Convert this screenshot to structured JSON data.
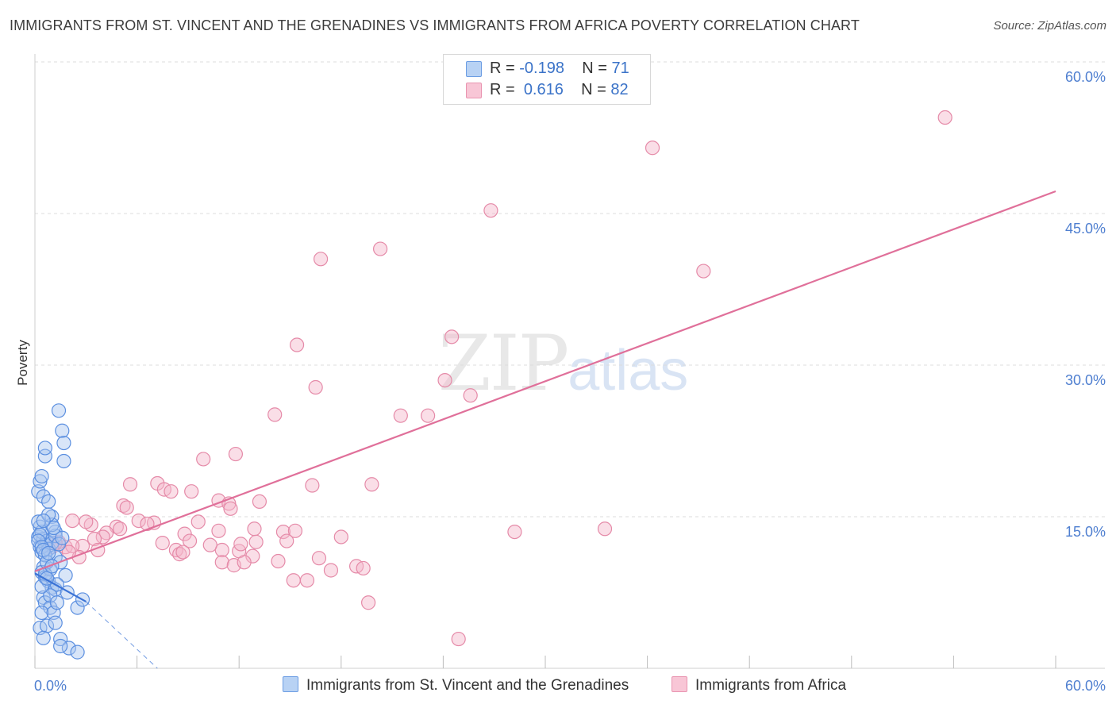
{
  "title": "IMMIGRANTS FROM ST. VINCENT AND THE GRENADINES VS IMMIGRANTS FROM AFRICA POVERTY CORRELATION CHART",
  "source": "Source: ZipAtlas.com",
  "watermark": {
    "zip": "ZIP",
    "atlas": "atlas"
  },
  "legend": {
    "series1": {
      "r_label": "R =",
      "r_value": "-0.198",
      "n_label": "N =",
      "n_value": "71"
    },
    "series2": {
      "r_label": "R =",
      "r_value": "0.616",
      "n_label": "N =",
      "n_value": "82"
    }
  },
  "colors": {
    "blue_fill": "#a8c6f0",
    "blue_stroke": "#5b8fe0",
    "blue_line": "#3b73d6",
    "pink_fill": "#f5b6c9",
    "pink_stroke": "#e58aa8",
    "pink_line": "#e0709a",
    "grid": "#dcdcdc",
    "tick_text": "#4f7fd0"
  },
  "chart_data": {
    "type": "scatter",
    "title": "IMMIGRANTS FROM ST. VINCENT AND THE GRENADINES VS IMMIGRANTS FROM AFRICA POVERTY CORRELATION CHART",
    "xlabel": "",
    "ylabel": "Poverty",
    "xlim": [
      0,
      60
    ],
    "ylim": [
      0,
      60
    ],
    "x_tick_labels": [
      "0.0%",
      "60.0%"
    ],
    "y_tick_labels": [
      "15.0%",
      "30.0%",
      "45.0%",
      "60.0%"
    ],
    "y_tick_values": [
      15,
      30,
      45,
      60
    ],
    "series": [
      {
        "name": "Immigrants from St. Vincent and the Grenadines",
        "color": "#5b8fe0",
        "trend": {
          "x": [
            0,
            3
          ],
          "y": [
            9.4,
            6.6
          ],
          "dashed_extension_to": [
            7.2,
            0
          ]
        },
        "points": [
          [
            0.2,
            13.0
          ],
          [
            0.3,
            12.0
          ],
          [
            0.4,
            11.5
          ],
          [
            0.5,
            12.8
          ],
          [
            0.6,
            12.2
          ],
          [
            0.3,
            14.0
          ],
          [
            0.4,
            13.5
          ],
          [
            0.7,
            12.6
          ],
          [
            0.8,
            11.8
          ],
          [
            1.0,
            12.4
          ],
          [
            0.2,
            17.5
          ],
          [
            0.3,
            18.5
          ],
          [
            0.4,
            19.0
          ],
          [
            0.5,
            17.0
          ],
          [
            0.6,
            21.0
          ],
          [
            0.6,
            21.8
          ],
          [
            0.8,
            16.5
          ],
          [
            1.0,
            15.0
          ],
          [
            1.2,
            13.5
          ],
          [
            0.5,
            10.0
          ],
          [
            0.4,
            9.5
          ],
          [
            0.6,
            9.0
          ],
          [
            0.8,
            8.6
          ],
          [
            1.0,
            8.0
          ],
          [
            1.2,
            7.8
          ],
          [
            0.5,
            7.0
          ],
          [
            0.6,
            6.5
          ],
          [
            0.9,
            6.0
          ],
          [
            0.4,
            5.5
          ],
          [
            1.1,
            5.5
          ],
          [
            0.3,
            4.0
          ],
          [
            0.7,
            4.2
          ],
          [
            1.2,
            4.5
          ],
          [
            1.5,
            2.9
          ],
          [
            2.0,
            2.0
          ],
          [
            2.5,
            1.6
          ],
          [
            1.5,
            2.2
          ],
          [
            0.5,
            3.0
          ],
          [
            1.4,
            25.5
          ],
          [
            1.6,
            23.5
          ],
          [
            1.7,
            22.3
          ],
          [
            1.7,
            20.5
          ],
          [
            1.2,
            11.0
          ],
          [
            1.5,
            10.5
          ],
          [
            1.8,
            9.2
          ],
          [
            1.9,
            7.5
          ],
          [
            2.5,
            6.0
          ],
          [
            2.8,
            6.8
          ],
          [
            1.3,
            8.3
          ],
          [
            0.9,
            9.8
          ],
          [
            0.3,
            13.2
          ],
          [
            0.2,
            12.6
          ],
          [
            0.4,
            12.0
          ],
          [
            0.6,
            11.2
          ],
          [
            0.2,
            14.5
          ],
          [
            1.2,
            13.1
          ],
          [
            1.4,
            12.3
          ],
          [
            1.6,
            12.9
          ],
          [
            0.7,
            10.5
          ],
          [
            0.5,
            11.7
          ],
          [
            1.0,
            14.2
          ],
          [
            0.8,
            15.2
          ],
          [
            1.1,
            13.9
          ],
          [
            0.6,
            9.3
          ],
          [
            0.9,
            7.2
          ],
          [
            1.3,
            6.5
          ],
          [
            0.4,
            8.1
          ],
          [
            0.7,
            8.9
          ],
          [
            1.0,
            10.1
          ],
          [
            0.8,
            11.4
          ],
          [
            0.5,
            14.6
          ]
        ]
      },
      {
        "name": "Immigrants from Africa",
        "color": "#e58aa8",
        "trend": {
          "x": [
            0,
            60
          ],
          "y": [
            9.6,
            47.2
          ]
        },
        "points": [
          [
            53.5,
            54.5
          ],
          [
            36.3,
            51.5
          ],
          [
            26.8,
            45.3
          ],
          [
            20.3,
            41.5
          ],
          [
            16.8,
            40.5
          ],
          [
            39.3,
            39.3
          ],
          [
            24.5,
            32.8
          ],
          [
            15.4,
            32.0
          ],
          [
            16.5,
            27.8
          ],
          [
            24.1,
            28.5
          ],
          [
            25.6,
            27.0
          ],
          [
            21.5,
            25.0
          ],
          [
            23.1,
            25.0
          ],
          [
            14.1,
            25.1
          ],
          [
            11.8,
            21.2
          ],
          [
            9.9,
            20.7
          ],
          [
            7.2,
            18.3
          ],
          [
            5.6,
            18.2
          ],
          [
            7.6,
            17.7
          ],
          [
            8.0,
            17.5
          ],
          [
            9.2,
            17.5
          ],
          [
            16.3,
            18.1
          ],
          [
            19.8,
            18.2
          ],
          [
            13.2,
            16.5
          ],
          [
            5.2,
            16.1
          ],
          [
            10.8,
            16.6
          ],
          [
            11.4,
            16.3
          ],
          [
            11.5,
            15.8
          ],
          [
            5.4,
            15.9
          ],
          [
            6.1,
            14.6
          ],
          [
            7.0,
            14.4
          ],
          [
            9.6,
            14.5
          ],
          [
            3.3,
            14.2
          ],
          [
            4.8,
            14.0
          ],
          [
            5.0,
            13.8
          ],
          [
            10.8,
            13.6
          ],
          [
            12.9,
            13.8
          ],
          [
            14.6,
            13.5
          ],
          [
            15.3,
            13.6
          ],
          [
            18.0,
            13.0
          ],
          [
            4.2,
            13.4
          ],
          [
            4.0,
            13.0
          ],
          [
            3.5,
            12.8
          ],
          [
            8.8,
            13.3
          ],
          [
            9.1,
            12.6
          ],
          [
            12.0,
            11.6
          ],
          [
            13.0,
            12.5
          ],
          [
            14.8,
            12.6
          ],
          [
            7.5,
            12.4
          ],
          [
            2.8,
            12.1
          ],
          [
            1.8,
            12.0
          ],
          [
            2.2,
            12.1
          ],
          [
            3.7,
            11.7
          ],
          [
            8.3,
            11.7
          ],
          [
            8.5,
            11.3
          ],
          [
            11.0,
            11.7
          ],
          [
            12.8,
            11.1
          ],
          [
            16.7,
            10.9
          ],
          [
            17.4,
            9.7
          ],
          [
            16.0,
            8.7
          ],
          [
            11.0,
            10.5
          ],
          [
            11.7,
            10.2
          ],
          [
            12.3,
            10.5
          ],
          [
            14.3,
            10.6
          ],
          [
            15.2,
            8.7
          ],
          [
            18.9,
            10.1
          ],
          [
            19.3,
            9.9
          ],
          [
            19.6,
            6.5
          ],
          [
            28.2,
            13.5
          ],
          [
            33.5,
            13.8
          ],
          [
            24.9,
            2.9
          ],
          [
            2.6,
            11.0
          ],
          [
            1.4,
            12.5
          ],
          [
            1.2,
            12.4
          ],
          [
            1.0,
            12.0
          ],
          [
            2.0,
            11.5
          ],
          [
            3.0,
            14.5
          ],
          [
            2.2,
            14.6
          ],
          [
            6.6,
            14.3
          ],
          [
            8.7,
            11.5
          ],
          [
            10.3,
            12.2
          ],
          [
            12.1,
            12.3
          ]
        ]
      }
    ]
  },
  "bottom_legend": {
    "series1": "Immigrants from St. Vincent and the Grenadines",
    "series2": "Immigrants from Africa"
  }
}
